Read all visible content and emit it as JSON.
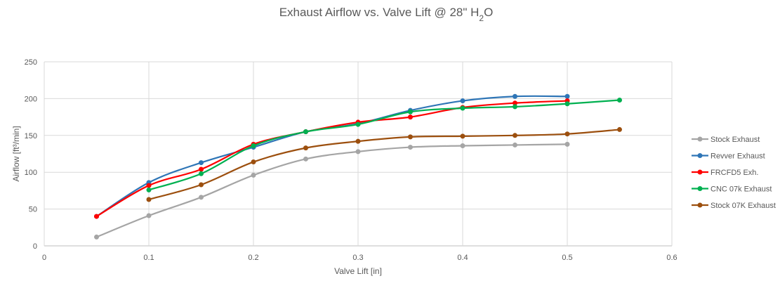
{
  "chart_data": {
    "type": "line",
    "title": "Exhaust Airflow vs. Valve Lift @ 28\" H",
    "title_sub": "2",
    "title_end": "O",
    "xlabel": "Valve Lift [in]",
    "ylabel": "Airflow [ft³/min]",
    "xlim": [
      0,
      0.6
    ],
    "ylim": [
      0,
      250
    ],
    "xticks": [
      0,
      0.1,
      0.2,
      0.3,
      0.4,
      0.5,
      0.6
    ],
    "xtick_labels": [
      "0",
      "0.1",
      "0.2",
      "0.3",
      "0.4",
      "0.5",
      "0.6"
    ],
    "yticks": [
      0,
      50,
      100,
      150,
      200,
      250
    ],
    "ytick_labels": [
      "0",
      "50",
      "100",
      "150",
      "200",
      "250"
    ],
    "grid": true,
    "smoothed": true,
    "legend_position": "right",
    "series": [
      {
        "name": "Stock Exhaust",
        "color": "#a5a5a5",
        "x": [
          0.05,
          0.1,
          0.15,
          0.2,
          0.25,
          0.3,
          0.35,
          0.4,
          0.45,
          0.5
        ],
        "y": [
          12,
          41,
          66,
          96,
          118,
          128,
          134,
          136,
          137,
          138
        ]
      },
      {
        "name": "Revver Exhaust",
        "color": "#2e75b6",
        "x": [
          0.05,
          0.1,
          0.15,
          0.2,
          0.25,
          0.3,
          0.35,
          0.4,
          0.45,
          0.5
        ],
        "y": [
          40,
          86,
          113,
          134,
          155,
          166,
          184,
          197,
          203,
          203
        ]
      },
      {
        "name": "FRCFD5 Exh.",
        "color": "#ff0000",
        "x": [
          0.05,
          0.1,
          0.15,
          0.2,
          0.25,
          0.3,
          0.35,
          0.4,
          0.45,
          0.5
        ],
        "y": [
          40,
          82,
          104,
          138,
          155,
          168,
          175,
          188,
          194,
          197
        ]
      },
      {
        "name": "CNC 07k Exhaust",
        "color": "#00b050",
        "x": [
          0.1,
          0.15,
          0.2,
          0.25,
          0.3,
          0.35,
          0.4,
          0.45,
          0.5,
          0.55
        ],
        "y": [
          76,
          98,
          136,
          155,
          165,
          182,
          187,
          189,
          193,
          198
        ]
      },
      {
        "name": "Stock 07K Exhaust",
        "color": "#9c4f0e",
        "x": [
          0.1,
          0.15,
          0.2,
          0.25,
          0.3,
          0.35,
          0.4,
          0.45,
          0.5,
          0.55
        ],
        "y": [
          63,
          83,
          114,
          133,
          142,
          148,
          149,
          150,
          152,
          158
        ]
      }
    ]
  }
}
